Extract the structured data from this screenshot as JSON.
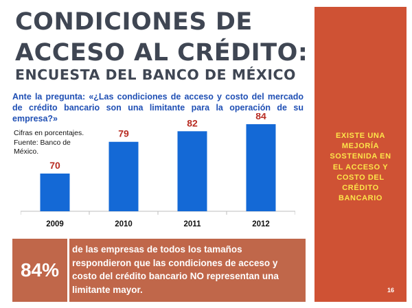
{
  "slide": {
    "title_line1": "CONDICIONES DE",
    "title_line2": "ACCESO AL CRÉDITO:",
    "subtitle": "ENCUESTA DEL BANCO DE MÉXICO",
    "question": "Ante la pregunta: «¿Las condiciones de acceso y costo del mercado de crédito bancario son una limitante para la operación de su empresa?»",
    "source_line1": "Cifras en porcentajes.",
    "source_line2": "Fuente: Banco de",
    "source_line3": "México.",
    "callout_value": "84%",
    "callout_text": "de las empresas de todos los tamaños respondieron que las condiciones de acceso y costo del crédito bancario NO representan una limitante mayor.",
    "side_text": "EXISTE UNA\nMEJORÍA\nSOSTENIDA EN\nEL ACCESO Y\nCOSTO DEL\nCRÉDITO\nBANCARIO",
    "page_number": "16"
  },
  "colors": {
    "bar": "#1469d6",
    "value_label": "#b82c22",
    "title": "#3f4653",
    "question": "#1f4fb4",
    "callout_bg": "#c0674a",
    "side_panel": "#cf5234",
    "side_text": "#fde54a"
  },
  "chart_data": {
    "type": "bar",
    "categories": [
      "2009",
      "2010",
      "2011",
      "2012"
    ],
    "values": [
      70,
      79,
      82,
      84
    ],
    "title": "",
    "xlabel": "",
    "ylabel": "",
    "grid": false,
    "data_labels": true
  }
}
